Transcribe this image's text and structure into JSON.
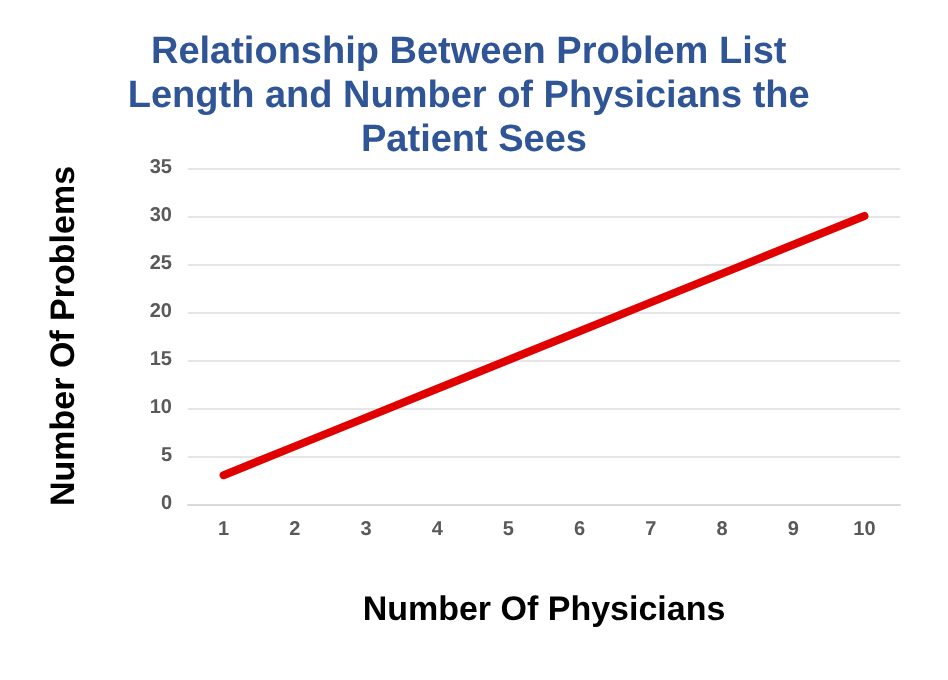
{
  "chart_data": {
    "type": "line",
    "title": "Relationship Between Problem List Length and Number of Physicians the Patient Sees",
    "xlabel": "Number Of Physicians",
    "ylabel": "Number Of Problems",
    "categories": [
      "1",
      "2",
      "3",
      "4",
      "5",
      "6",
      "7",
      "8",
      "9",
      "10"
    ],
    "series": [
      {
        "color": "#e00000",
        "values": [
          3,
          6,
          9,
          12,
          15,
          18,
          21,
          24,
          27,
          30
        ]
      }
    ],
    "ylim": [
      0,
      35
    ],
    "yticks": [
      0,
      5,
      10,
      15,
      20,
      25,
      30,
      35
    ],
    "grid": "y",
    "marker": "none",
    "line_style": "solid"
  }
}
